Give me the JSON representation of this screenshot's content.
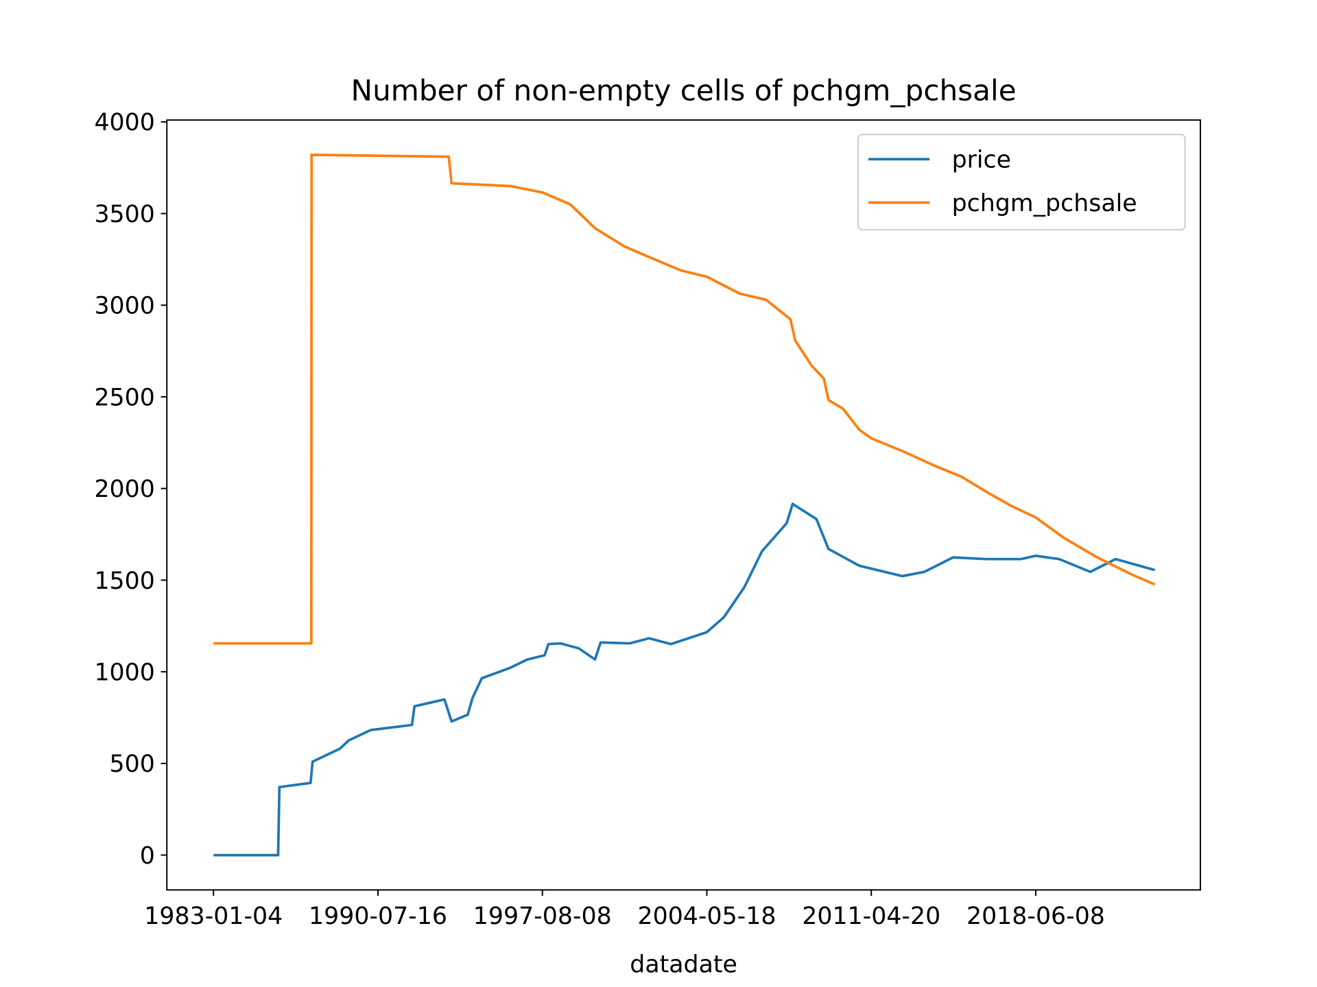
{
  "chart_data": {
    "type": "line",
    "title": "Number of non-empty cells of pchgm_pchsale",
    "x_label": "datadate",
    "xlim": [
      "1980-11-15",
      "2025-07-30"
    ],
    "xticks": [
      "1983-01-04",
      "1990-07-16",
      "1997-08-08",
      "2004-05-18",
      "2011-04-20",
      "2018-06-08"
    ],
    "ylim": [
      -190,
      4010
    ],
    "yticks": [
      0,
      500,
      1000,
      1500,
      2000,
      2500,
      3000,
      3500,
      4000
    ],
    "legend": "upper right",
    "series": [
      {
        "name": "price",
        "color": "#1f77b4",
        "x": [
          "1983-01-04",
          "1985-12-20",
          "1986-01-10",
          "1987-06-15",
          "1987-07-20",
          "1988-10-15",
          "1989-03-15",
          "1990-03-15",
          "1992-01-01",
          "1992-02-10",
          "1993-05-25",
          "1993-09-12",
          "1994-05-25",
          "1994-08-08",
          "1995-01-01",
          "1996-03-15",
          "1996-12-16",
          "1997-09-10",
          "1997-11-07",
          "1998-05-08",
          "1999-02-06",
          "1999-10-08",
          "2000-01-01",
          "2001-03-15",
          "2002-01-01",
          "2002-11-24",
          "2004-05-18",
          "2005-02-06",
          "2005-12-16",
          "2006-09-12",
          "2007-09-27",
          "2007-12-28",
          "2008-12-28",
          "2009-07-02",
          "2010-10-19",
          "2012-08-26",
          "2013-08-08",
          "2014-11-07",
          "2016-04-20",
          "2017-10-19",
          "2018-06-08",
          "2019-06-15",
          "2020-10-19",
          "2021-11-24",
          "2023-08-08"
        ],
        "values": [
          0,
          0,
          371,
          394,
          510,
          580,
          626,
          682,
          710,
          812,
          849,
          729,
          766,
          858,
          965,
          1021,
          1067,
          1090,
          1151,
          1155,
          1128,
          1067,
          1160,
          1155,
          1183,
          1151,
          1216,
          1299,
          1462,
          1657,
          1810,
          1916,
          1833,
          1670,
          1578,
          1522,
          1545,
          1624,
          1615,
          1615,
          1633,
          1615,
          1545,
          1615,
          1555
        ]
      },
      {
        "name": "pchgm_pchsale",
        "color": "#ff7f0e",
        "x": [
          "1983-01-04",
          "1987-06-28",
          "1987-07-02",
          "1990-09-12",
          "1993-07-30",
          "1993-09-12",
          "1996-03-25",
          "1997-08-08",
          "1998-10-01",
          "1999-10-08",
          "2000-12-28",
          "2001-11-14",
          "2003-04-20",
          "2004-05-18",
          "2005-10-05",
          "2006-11-13",
          "2007-11-24",
          "2008-02-06",
          "2008-10-19",
          "2009-04-20",
          "2009-07-02",
          "2010-02-06",
          "2010-10-19",
          "2011-04-20",
          "2012-08-26",
          "2014-02-06",
          "2015-03-15",
          "2016-04-20",
          "2017-05-27",
          "2018-06-08",
          "2019-08-26",
          "2021-02-06",
          "2022-08-08",
          "2023-08-08"
        ],
        "values": [
          1155,
          1155,
          3820,
          3815,
          3810,
          3665,
          3650,
          3615,
          3550,
          3420,
          3320,
          3270,
          3190,
          3155,
          3063,
          3030,
          2923,
          2807,
          2668,
          2600,
          2482,
          2436,
          2320,
          2274,
          2204,
          2121,
          2065,
          1981,
          1903,
          1842,
          1731,
          1624,
          1531,
          1476
        ]
      }
    ]
  }
}
